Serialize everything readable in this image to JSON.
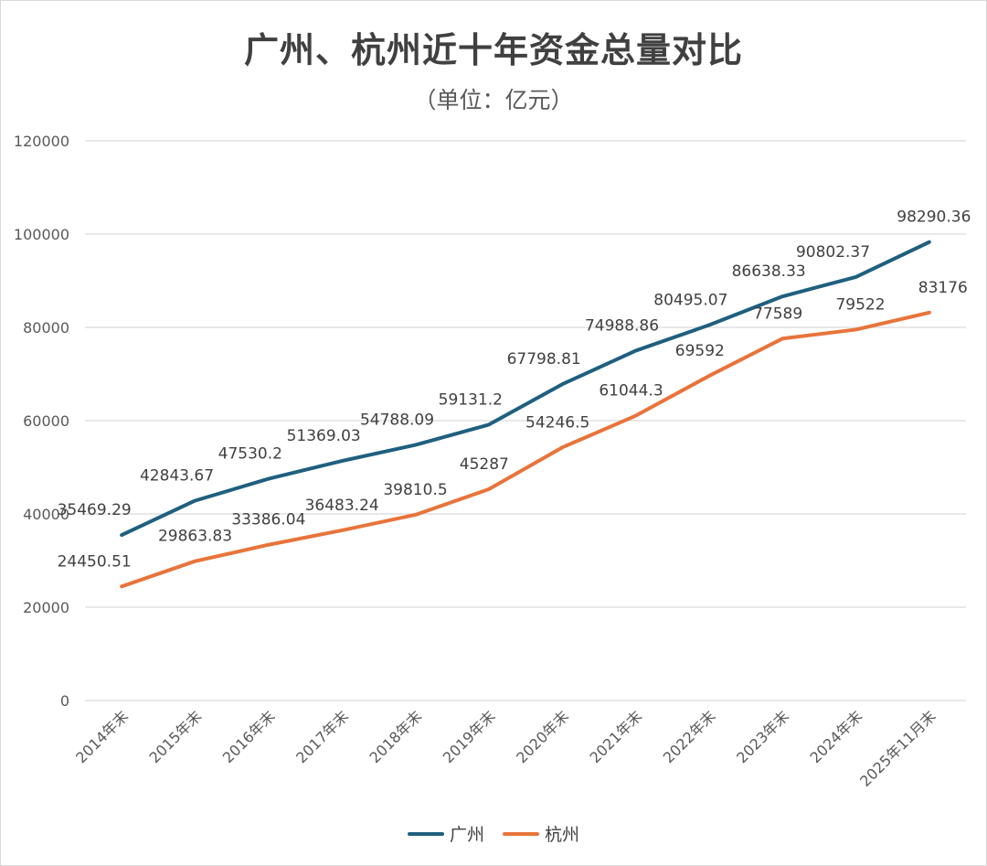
{
  "chart_data": {
    "type": "line",
    "title": "广州、杭州近十年资金总量对比",
    "subtitle": "（单位：亿元）",
    "categories": [
      "2014年末",
      "2015年末",
      "2016年末",
      "2017年末",
      "2018年末",
      "2019年末",
      "2020年末",
      "2021年末",
      "2022年末",
      "2023年末",
      "2024年末",
      "2025年11月末"
    ],
    "series": [
      {
        "name": "广州",
        "color": "#1f5f7f",
        "values": [
          35469.29,
          42843.67,
          47530.2,
          51369.03,
          54788.09,
          59131.2,
          67798.81,
          74988.86,
          80495.07,
          86638.33,
          90802.37,
          98290.36
        ],
        "labels": [
          "35469.29",
          "42843.67",
          "47530.2",
          "51369.03",
          "54788.09",
          "59131.2",
          "67798.81",
          "74988.86",
          "80495.07",
          "86638.33",
          "90802.37",
          "98290.36"
        ]
      },
      {
        "name": "杭州",
        "color": "#e8743b",
        "values": [
          24450.51,
          29863.83,
          33386.04,
          36483.24,
          39810.5,
          45287,
          54246.5,
          61044.3,
          69592,
          77589,
          79522,
          83176
        ],
        "labels": [
          "24450.51",
          "29863.83",
          "33386.04",
          "36483.24",
          "39810.5",
          "45287",
          "54246.5",
          "61044.3",
          "69592",
          "77589",
          "79522",
          "83176"
        ]
      }
    ],
    "ylim": [
      0,
      120000
    ],
    "yticks": [
      "0",
      "20000",
      "40000",
      "60000",
      "80000",
      "100000",
      "120000"
    ],
    "grid": true,
    "legend": "bottom"
  }
}
